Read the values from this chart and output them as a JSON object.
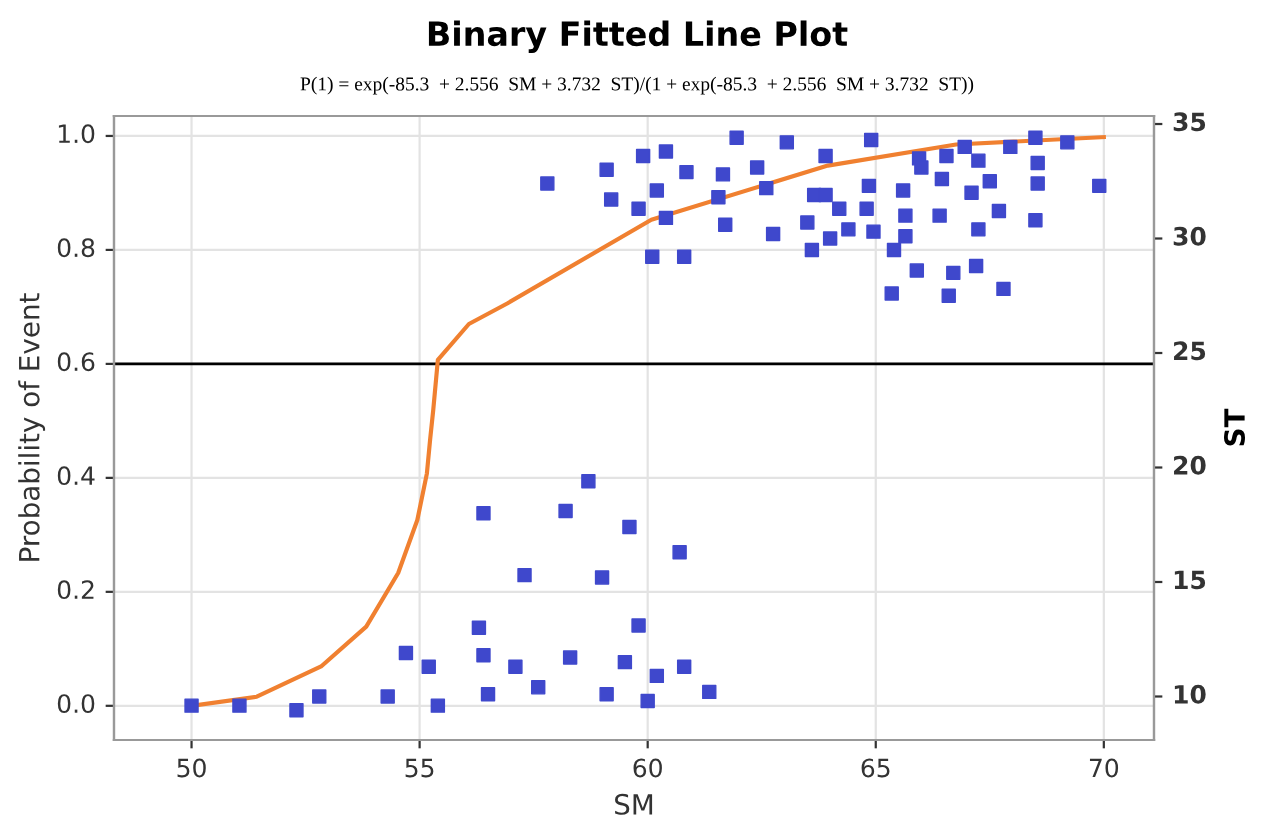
{
  "chart_data": {
    "type": "scatter",
    "title": "Binary Fitted Line Plot",
    "subtitle": "P(1) = exp(-85.3  + 2.556  SM + 3.732  ST)/(1 + exp(-85.3  + 2.556  SM + 3.732  ST))",
    "xlabel": "SM",
    "ylabel": "Probability of Event",
    "y2label": "ST",
    "xlim": [
      48.3,
      71.1
    ],
    "xticks": [
      50,
      55,
      60,
      65,
      70
    ],
    "ylim": [
      -0.06,
      1.035
    ],
    "yticks": [
      {
        "value": 0,
        "label": "0.0"
      },
      0.2,
      0.4,
      0.6,
      0.8,
      {
        "value": 1,
        "label": "1.0"
      }
    ],
    "y2lim": [
      8.1,
      35.35
    ],
    "y2ticks": [
      10,
      15,
      20,
      25,
      30,
      35
    ],
    "grid": true,
    "legend": false,
    "ref_lines": [
      {
        "axis": "y",
        "value": 0.6,
        "color": "#000000"
      }
    ],
    "series": [
      {
        "type": "scatter",
        "axis": "y2",
        "color": "#3f48cc",
        "marker": "square",
        "x": [
          50.0,
          51.05,
          52.3,
          52.8,
          54.3,
          54.7,
          55.2,
          55.4,
          56.4,
          56.3,
          56.4,
          56.5,
          57.3,
          57.1,
          57.6,
          58.2,
          58.3,
          58.7,
          59.0,
          59.1,
          59.5,
          59.6,
          59.8,
          60.0,
          60.2,
          60.7,
          60.8,
          61.35,
          57.8,
          59.1,
          59.2,
          59.9,
          59.8,
          60.1,
          60.2,
          60.4,
          60.4,
          60.8,
          60.85,
          61.65,
          61.55,
          61.7,
          61.95,
          62.4,
          62.6,
          62.75,
          63.05,
          63.5,
          63.6,
          63.65,
          63.9,
          63.9,
          64.0,
          64.2,
          64.4,
          64.8,
          64.85,
          64.9,
          64.95,
          65.4,
          65.35,
          65.6,
          65.65,
          65.65,
          65.9,
          65.95,
          66.0,
          66.4,
          66.45,
          66.55,
          66.6,
          66.7,
          66.95,
          67.1,
          67.2,
          67.25,
          67.25,
          67.5,
          67.7,
          67.8,
          67.95,
          68.5,
          68.55,
          68.55,
          68.5,
          69.2,
          69.9
        ],
        "values": [
          9.6,
          9.6,
          9.4,
          10.0,
          10.0,
          11.9,
          11.3,
          9.6,
          18.0,
          13.0,
          11.8,
          10.1,
          15.3,
          11.3,
          10.4,
          18.1,
          11.7,
          19.4,
          15.2,
          10.1,
          11.5,
          17.4,
          13.1,
          9.8,
          10.9,
          16.3,
          11.3,
          10.2,
          32.4,
          33.0,
          31.7,
          33.6,
          31.3,
          29.2,
          32.1,
          33.8,
          30.9,
          29.2,
          32.9,
          32.8,
          31.8,
          30.6,
          34.4,
          33.1,
          32.2,
          30.2,
          34.2,
          30.7,
          29.5,
          31.9,
          33.6,
          31.9,
          30.0,
          31.3,
          30.4,
          31.3,
          32.3,
          34.3,
          30.3,
          29.5,
          27.6,
          32.1,
          31.0,
          30.1,
          28.6,
          33.5,
          33.1,
          31.0,
          32.6,
          33.6,
          27.5,
          28.5,
          34.0,
          32.0,
          28.8,
          33.4,
          30.4,
          32.5,
          31.2,
          27.8,
          34.0,
          34.4,
          33.3,
          32.4,
          30.8,
          34.2,
          32.3
        ]
      },
      {
        "type": "line",
        "color": "#f08030",
        "marker": "none",
        "line_style": "solid",
        "x": [
          50.0,
          51.43,
          52.84,
          53.83,
          54.53,
          54.95,
          55.16,
          55.23,
          55.3,
          55.4,
          56.08,
          56.92,
          60.08,
          63.95,
          66.76,
          70.0
        ],
        "values": [
          0.0,
          0.016,
          0.069,
          0.139,
          0.233,
          0.326,
          0.408,
          0.467,
          0.52,
          0.607,
          0.67,
          0.706,
          0.853,
          0.948,
          0.985,
          0.998
        ]
      }
    ]
  }
}
